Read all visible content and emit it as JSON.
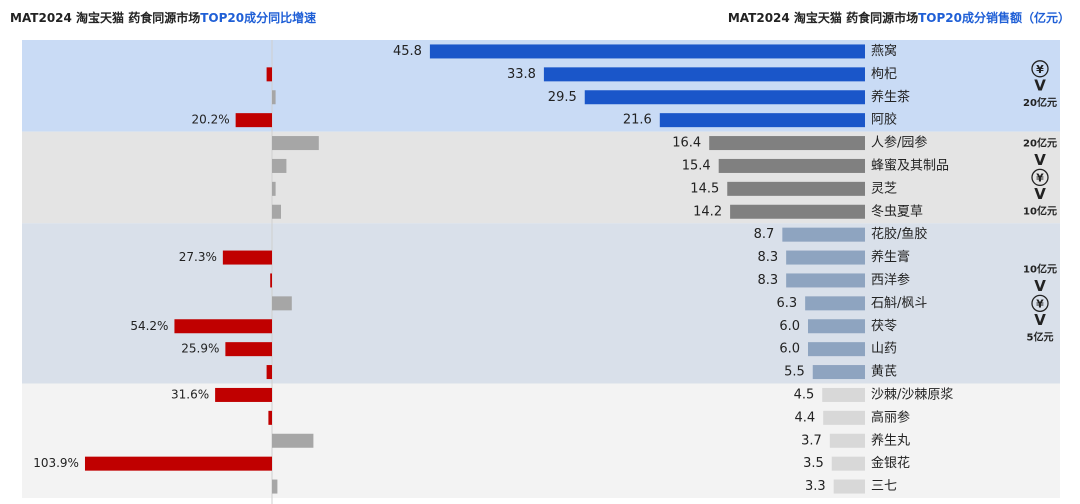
{
  "titles": {
    "left_part1": "MAT2024 淘宝天猫 药食同源市场",
    "left_part2": "TOP20成分同比增速",
    "right_part1": "MAT2024 淘宝天猫 药食同源市场",
    "right_part2": "TOP20成分销售额（亿元）"
  },
  "tiers": [
    {
      "name": "tier-1",
      "color": "#c9dbf5",
      "rows": [
        0,
        3
      ],
      "labels": [
        "¥",
        "V",
        "20亿元"
      ]
    },
    {
      "name": "tier-2",
      "color": "#e4e4e4",
      "rows": [
        4,
        7
      ],
      "labels": [
        "20亿元",
        "V",
        "¥",
        "V",
        "10亿元"
      ]
    },
    {
      "name": "tier-3",
      "color": "#d9e0ea",
      "rows": [
        8,
        14
      ],
      "labels": [
        "10亿元",
        "V",
        "¥",
        "V",
        "5亿元"
      ]
    },
    {
      "name": "tier-4",
      "color": "#f3f3f3",
      "rows": [
        15,
        19
      ],
      "labels": []
    }
  ],
  "chart_data": {
    "type": "bar",
    "categories": [
      "燕窝",
      "枸杞",
      "养生茶",
      "阿胶",
      "人参/园参",
      "蜂蜜及其制品",
      "灵芝",
      "冬虫夏草",
      "花胶/鱼胶",
      "养生膏",
      "西洋参",
      "石斛/枫斗",
      "茯苓",
      "山药",
      "黄芪",
      "沙棘/沙棘原浆",
      "高丽参",
      "养生丸",
      "金银花",
      "三七"
    ],
    "series": [
      {
        "name": "销售额（亿元）",
        "values": [
          45.8,
          33.8,
          29.5,
          21.6,
          16.4,
          15.4,
          14.5,
          14.2,
          8.7,
          8.3,
          8.3,
          6.3,
          6.0,
          6.0,
          5.5,
          4.5,
          4.4,
          3.7,
          3.5,
          3.3
        ],
        "labels": [
          "45.8",
          "33.8",
          "29.5",
          "21.6",
          "16.4",
          "15.4",
          "14.5",
          "14.2",
          "8.7",
          "8.3",
          "8.3",
          "6.3",
          "6.0",
          "6.0",
          "5.5",
          "4.5",
          "4.4",
          "3.7",
          "3.5",
          "3.3"
        ]
      },
      {
        "name": "同比增速",
        "values": [
          0,
          -3,
          2,
          -20.2,
          26,
          8,
          2,
          5,
          0,
          -27.3,
          -1,
          11,
          -54.2,
          -25.9,
          -3,
          -31.6,
          -2,
          23,
          -103.9,
          3
        ],
        "labels": [
          "",
          "",
          "",
          "20.2%",
          "",
          "",
          "",
          "",
          "",
          "27.3%",
          "",
          "",
          "54.2%",
          "25.9%",
          "",
          "31.6%",
          "",
          "",
          "103.9%",
          ""
        ]
      }
    ],
    "colors": {
      "tier1": "#1a56c9",
      "tier2": "#808080",
      "tier3": "#8ea4c0",
      "tier4": "#d8d8d8",
      "growth_up": "#a6a6a6",
      "growth_down": "#c00000"
    }
  }
}
